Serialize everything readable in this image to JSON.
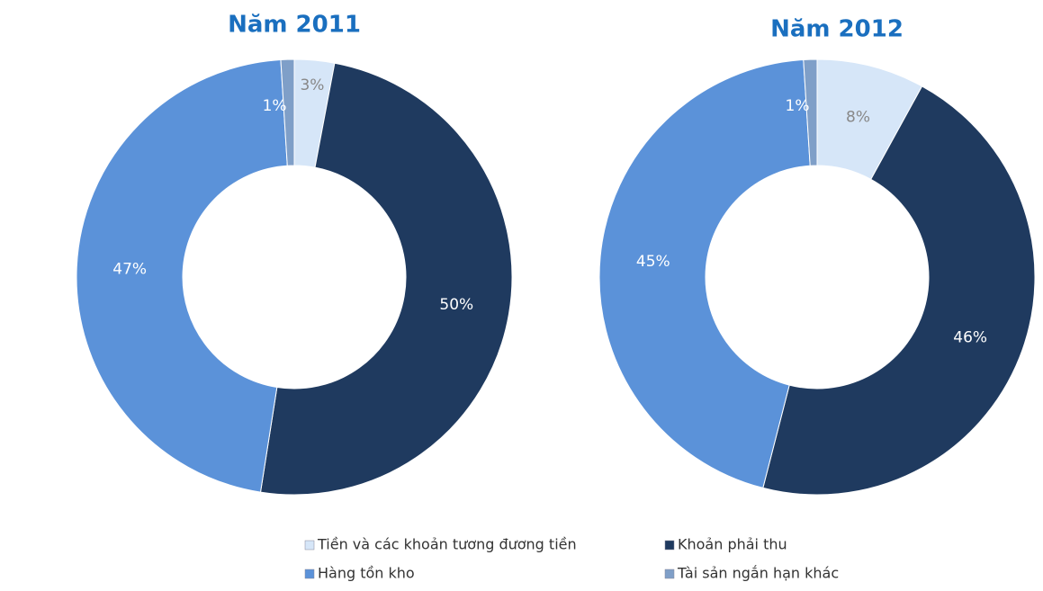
{
  "chart_data": [
    {
      "type": "donut",
      "title": "Năm 2011",
      "categories": [
        "Tiền và các khoản tương đương tiền",
        "Khoản phải thu",
        "Hàng tồn kho",
        "Tài sản ngắn hạn khác"
      ],
      "values": [
        3,
        50,
        47,
        1
      ],
      "value_labels": [
        "3%",
        "50%",
        "47%",
        "1%"
      ],
      "colors": [
        "#d6e6f8",
        "#1f3a5f",
        "#5b92d9",
        "#7f9fc8"
      ]
    },
    {
      "type": "donut",
      "title": "Năm 2012",
      "categories": [
        "Tiền và các khoản tương đương tiền",
        "Khoản phải thu",
        "Hàng tồn kho",
        "Tài sản ngắn hạn khác"
      ],
      "values": [
        8,
        46,
        45,
        1
      ],
      "value_labels": [
        "8%",
        "46%",
        "45%",
        "1%"
      ],
      "colors": [
        "#d6e6f8",
        "#1f3a5f",
        "#5b92d9",
        "#7f9fc8"
      ]
    }
  ]
}
